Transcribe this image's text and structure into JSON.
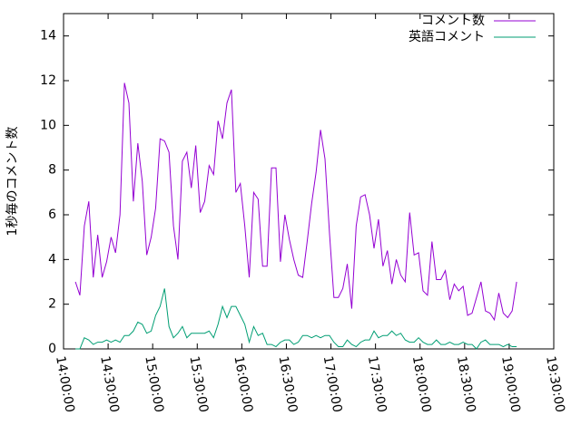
{
  "chart_data": {
    "type": "line",
    "ylabel": "1秒毎のコメント数",
    "x": [
      "14:08:00",
      "14:11:00",
      "14:14:00",
      "14:17:00",
      "14:20:00",
      "14:23:00",
      "14:26:00",
      "14:29:00",
      "14:32:00",
      "14:35:00",
      "14:38:00",
      "14:41:00",
      "14:44:00",
      "14:47:00",
      "14:50:00",
      "14:53:00",
      "14:56:00",
      "14:59:00",
      "15:02:00",
      "15:05:00",
      "15:08:00",
      "15:11:00",
      "15:14:00",
      "15:17:00",
      "15:20:00",
      "15:23:00",
      "15:26:00",
      "15:29:00",
      "15:32:00",
      "15:35:00",
      "15:38:00",
      "15:41:00",
      "15:44:00",
      "15:47:00",
      "15:50:00",
      "15:53:00",
      "15:56:00",
      "15:59:00",
      "16:02:00",
      "16:05:00",
      "16:08:00",
      "16:11:00",
      "16:14:00",
      "16:17:00",
      "16:20:00",
      "16:23:00",
      "16:26:00",
      "16:29:00",
      "16:32:00",
      "16:35:00",
      "16:38:00",
      "16:41:00",
      "16:44:00",
      "16:47:00",
      "16:50:00",
      "16:53:00",
      "16:56:00",
      "16:59:00",
      "17:02:00",
      "17:05:00",
      "17:08:00",
      "17:11:00",
      "17:14:00",
      "17:17:00",
      "17:20:00",
      "17:23:00",
      "17:26:00",
      "17:29:00",
      "17:32:00",
      "17:35:00",
      "17:38:00",
      "17:41:00",
      "17:44:00",
      "17:47:00",
      "17:50:00",
      "17:53:00",
      "17:56:00",
      "17:59:00",
      "18:02:00",
      "18:05:00",
      "18:08:00",
      "18:11:00",
      "18:14:00",
      "18:17:00",
      "18:20:00",
      "18:23:00",
      "18:26:00",
      "18:29:00",
      "18:32:00",
      "18:35:00",
      "18:38:00",
      "18:41:00",
      "18:44:00",
      "18:47:00",
      "18:50:00",
      "18:53:00",
      "18:56:00",
      "18:59:00",
      "19:02:00",
      "19:05:00"
    ],
    "series": [
      {
        "name": "コメント数",
        "color": "#9400d3",
        "values": [
          3.0,
          2.4,
          5.5,
          6.6,
          3.2,
          5.1,
          3.2,
          3.9,
          5.0,
          4.3,
          6.0,
          11.9,
          11.0,
          6.6,
          9.2,
          7.5,
          4.2,
          5.0,
          6.3,
          9.4,
          9.3,
          8.8,
          5.5,
          4.0,
          8.4,
          8.8,
          7.2,
          9.1,
          6.1,
          6.6,
          8.2,
          7.8,
          10.2,
          9.4,
          11.0,
          11.6,
          7.0,
          7.4,
          5.5,
          3.2,
          7.0,
          6.7,
          3.7,
          3.7,
          8.1,
          8.1,
          3.9,
          6.0,
          4.9,
          4.0,
          3.3,
          3.2,
          4.8,
          6.5,
          7.9,
          9.8,
          8.5,
          5.2,
          2.3,
          2.3,
          2.7,
          3.8,
          1.8,
          5.5,
          6.8,
          6.9,
          6.0,
          4.5,
          5.8,
          3.7,
          4.4,
          2.9,
          4.0,
          3.3,
          3.0,
          6.1,
          4.2,
          4.3,
          2.6,
          2.4,
          4.8,
          3.1,
          3.1,
          3.5,
          2.2,
          2.9,
          2.6,
          2.8,
          1.5,
          1.6,
          2.3,
          3.0,
          1.7,
          1.6,
          1.3,
          2.5,
          1.6,
          1.4,
          1.7,
          3.0
        ]
      },
      {
        "name": "英語コメント",
        "color": "#009e73",
        "values": [
          0,
          0,
          0.5,
          0.4,
          0.2,
          0.3,
          0.3,
          0.4,
          0.3,
          0.4,
          0.3,
          0.6,
          0.6,
          0.8,
          1.2,
          1.1,
          0.7,
          0.8,
          1.5,
          1.9,
          2.7,
          1.0,
          0.5,
          0.7,
          1.0,
          0.5,
          0.7,
          0.7,
          0.7,
          0.7,
          0.8,
          0.5,
          1.1,
          1.9,
          1.4,
          1.9,
          1.9,
          1.5,
          1.1,
          0.3,
          1.0,
          0.6,
          0.7,
          0.2,
          0.2,
          0.1,
          0.3,
          0.4,
          0.4,
          0.2,
          0.3,
          0.6,
          0.6,
          0.5,
          0.6,
          0.5,
          0.6,
          0.6,
          0.3,
          0.1,
          0.1,
          0.4,
          0.2,
          0.1,
          0.3,
          0.4,
          0.4,
          0.8,
          0.5,
          0.6,
          0.6,
          0.8,
          0.6,
          0.7,
          0.4,
          0.3,
          0.3,
          0.5,
          0.3,
          0.2,
          0.2,
          0.4,
          0.2,
          0.2,
          0.3,
          0.2,
          0.2,
          0.3,
          0.2,
          0.2,
          0.0,
          0.3,
          0.4,
          0.2,
          0.2,
          0.2,
          0.1,
          0.2,
          0.1,
          0.1
        ]
      }
    ],
    "xlim": [
      "14:00:00",
      "19:30:00"
    ],
    "xticks": [
      "14:00:00",
      "14:30:00",
      "15:00:00",
      "15:30:00",
      "16:00:00",
      "16:30:00",
      "17:00:00",
      "17:30:00",
      "18:00:00",
      "18:30:00",
      "19:00:00",
      "19:30:00"
    ],
    "ylim": [
      0,
      15
    ],
    "yticks": [
      0,
      2,
      4,
      6,
      8,
      10,
      12,
      14
    ],
    "legend": "top-right",
    "grid": false
  }
}
